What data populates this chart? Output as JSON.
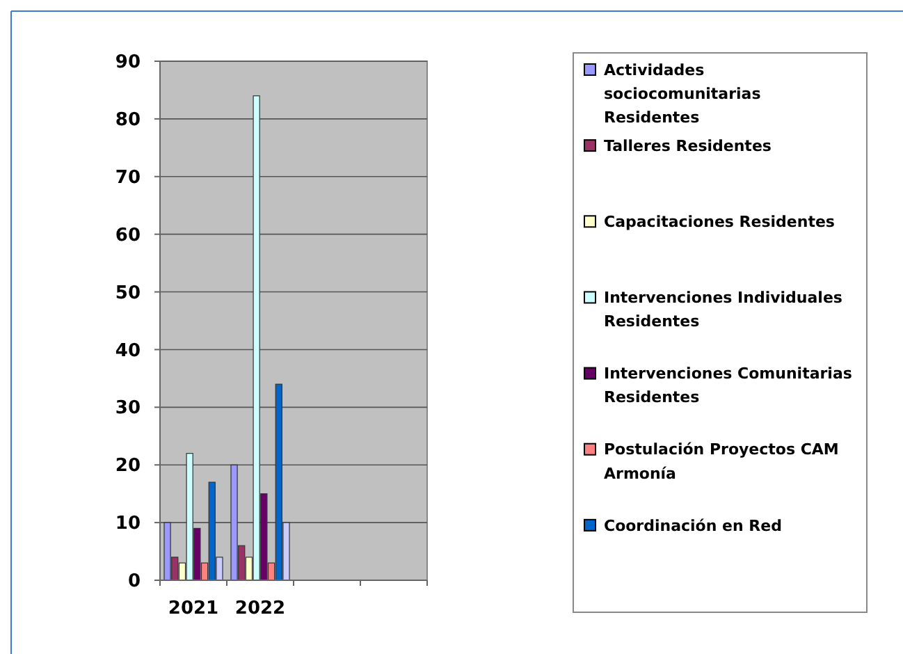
{
  "chart_data": {
    "type": "bar",
    "categories": [
      "2021",
      "2022",
      null,
      null
    ],
    "series": [
      {
        "name": "Actividades sociocomunitarias Residentes",
        "color": "#9999ff",
        "values": [
          10,
          20,
          null,
          null
        ]
      },
      {
        "name": "Talleres Residentes",
        "color": "#993366",
        "values": [
          4,
          6,
          null,
          null
        ]
      },
      {
        "name": "Capacitaciones Residentes",
        "color": "#ffffcc",
        "values": [
          3,
          4,
          null,
          null
        ]
      },
      {
        "name": "Intervenciones Individuales Residentes",
        "color": "#ccffff",
        "values": [
          22,
          84,
          null,
          null
        ]
      },
      {
        "name": "Intervenciones Comunitarias Residentes",
        "color": "#660066",
        "values": [
          9,
          15,
          null,
          null
        ]
      },
      {
        "name": "Postulación Proyectos CAM Armonía",
        "color": "#ff8080",
        "values": [
          3,
          3,
          null,
          null
        ]
      },
      {
        "name": "Coordinación en Red",
        "color": "#0066cc",
        "values": [
          17,
          34,
          null,
          null
        ]
      },
      {
        "color": "#ccccff",
        "values": [
          4,
          10,
          null,
          null
        ]
      }
    ],
    "ylim": [
      0,
      90
    ],
    "yticks": [
      0,
      10,
      20,
      30,
      40,
      50,
      60,
      70,
      80,
      90
    ],
    "grid": "y",
    "legend": "right"
  }
}
